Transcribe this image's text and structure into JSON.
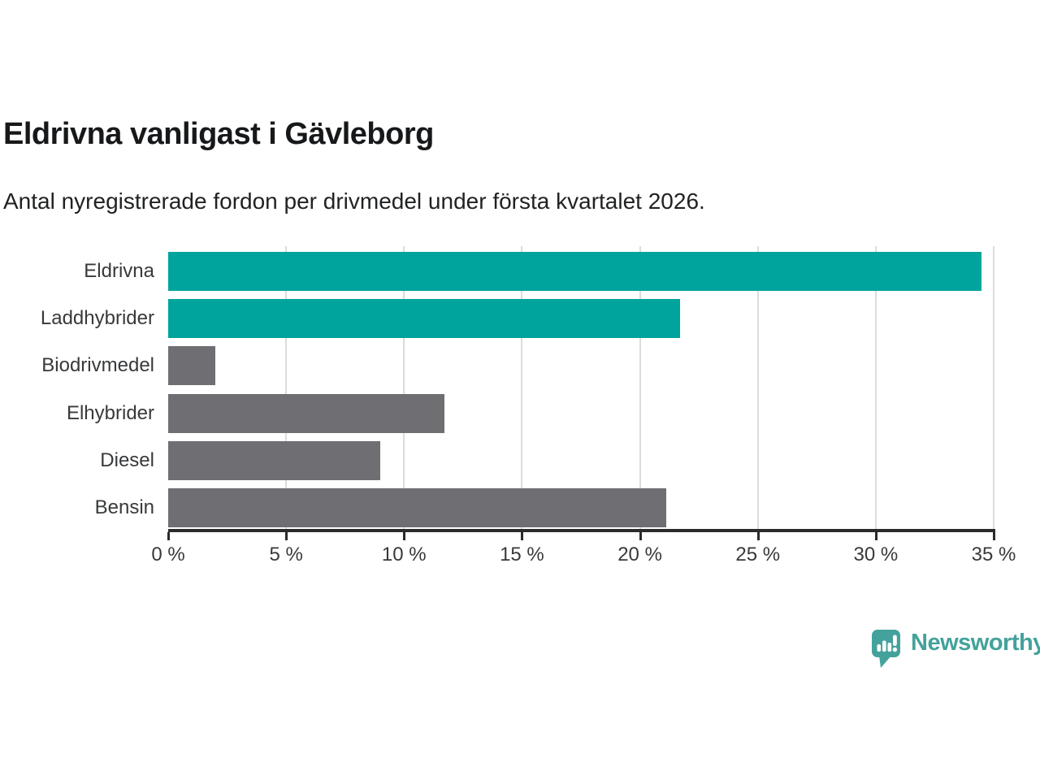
{
  "chart_data": {
    "type": "bar",
    "orientation": "horizontal",
    "title": "Eldrivna vanligast i Gävleborg",
    "subtitle": "Antal nyregistrerade fordon per drivmedel under första kvartalet 2026.",
    "categories": [
      "Eldrivna",
      "Laddhybrider",
      "Biodrivmedel",
      "Elhybrider",
      "Diesel",
      "Bensin"
    ],
    "values": [
      34.5,
      21.7,
      2.0,
      11.7,
      9.0,
      21.1
    ],
    "highlighted": [
      true,
      true,
      false,
      false,
      false,
      false
    ],
    "unit": "%",
    "xlim": [
      0,
      35
    ],
    "x_ticks": [
      {
        "value": 0,
        "label": "0 %"
      },
      {
        "value": 5,
        "label": "5 %"
      },
      {
        "value": 10,
        "label": "10 %"
      },
      {
        "value": 15,
        "label": "15 %"
      },
      {
        "value": 20,
        "label": "20 %"
      },
      {
        "value": 25,
        "label": "25 %"
      },
      {
        "value": 30,
        "label": "30 %"
      },
      {
        "value": 35,
        "label": "35 %"
      }
    ],
    "grid": true,
    "legend": "none",
    "colors": {
      "highlight": "#00a49c",
      "default": "#6e6e73",
      "gridline": "#dcdcdc",
      "axis": "#2b2b2b",
      "label_text": "#37393b"
    }
  },
  "branding": {
    "logo_text": "Newsworthy",
    "logo_color": "#43a29b",
    "logo_icon": "newsworthy-speech-bubble-bar-chart-icon"
  }
}
